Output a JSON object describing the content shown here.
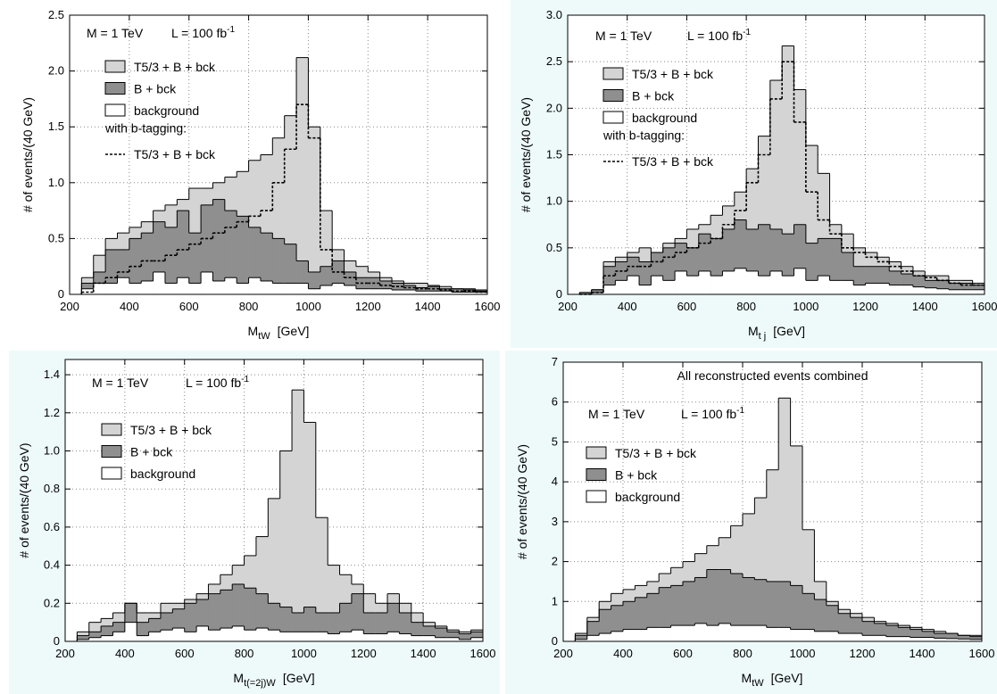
{
  "chart_data": [
    {
      "type": "histogram",
      "xlabel": "M",
      "xlabel_sub": "tW",
      "xlabel_unit": "[GeV]",
      "ylabel": "# of events/(40 GeV)",
      "mass_label": "M = 1 TeV",
      "lumi_label": "L = 100 fb",
      "lumi_exp": "-1",
      "legend_note": "with b-tagging:",
      "xlim": [
        200,
        1600
      ],
      "xticks": [
        200,
        400,
        600,
        800,
        1000,
        1200,
        1400,
        1600
      ],
      "ylim": [
        0,
        2.5
      ],
      "yticks": [
        0,
        0.5,
        {
          "value": 1,
          "label": "1.0"
        },
        1.5,
        {
          "value": 2,
          "label": "2.0"
        },
        2.5
      ],
      "grid": true,
      "bins": [
        240,
        280,
        320,
        360,
        400,
        440,
        480,
        520,
        560,
        600,
        640,
        680,
        720,
        760,
        800,
        840,
        880,
        920,
        960,
        1000,
        1040,
        1080,
        1120,
        1160,
        1200,
        1240,
        1280,
        1320,
        1360,
        1400,
        1440,
        1480,
        1520,
        1560,
        1600
      ],
      "series": [
        {
          "name": "T5/3 + B + bck",
          "color": "#d4d4d4",
          "values": [
            0.15,
            0.35,
            0.5,
            0.55,
            0.6,
            0.65,
            0.75,
            0.8,
            0.85,
            0.95,
            0.95,
            1.0,
            1.05,
            1.1,
            1.2,
            1.25,
            1.4,
            1.6,
            2.12,
            1.5,
            0.75,
            0.4,
            0.3,
            0.25,
            0.2,
            0.15,
            0.12,
            0.1,
            0.1,
            0.08,
            0.07,
            0.05,
            0.05,
            0.04
          ]
        },
        {
          "name": "B + bck",
          "color": "#8f8f8f",
          "values": [
            0.1,
            0.2,
            0.4,
            0.4,
            0.5,
            0.55,
            0.65,
            0.6,
            0.75,
            0.55,
            0.8,
            0.85,
            0.75,
            0.7,
            0.6,
            0.55,
            0.5,
            0.45,
            0.3,
            0.2,
            0.25,
            0.3,
            0.2,
            0.15,
            0.15,
            0.12,
            0.1,
            0.08,
            0.06,
            0.07,
            0.05,
            0.05,
            0.04,
            0.03
          ]
        },
        {
          "name": "background",
          "color": "#ffffff",
          "values": [
            0.05,
            0.1,
            0.1,
            0.15,
            0.1,
            0.12,
            0.2,
            0.1,
            0.15,
            0.1,
            0.2,
            0.12,
            0.15,
            0.1,
            0.15,
            0.12,
            0.1,
            0.1,
            0.1,
            0.05,
            0.08,
            0.1,
            0.08,
            0.05,
            0.05,
            0.05,
            0.04,
            0.04,
            0.03,
            0.03,
            0.03,
            0.02,
            0.02,
            0.02
          ]
        },
        {
          "name": "T5/3 + B + bck",
          "color": "#000000",
          "style": "dotted",
          "values": [
            0.02,
            0.1,
            0.15,
            0.2,
            0.25,
            0.3,
            0.3,
            0.35,
            0.4,
            0.45,
            0.5,
            0.55,
            0.6,
            0.65,
            0.7,
            0.75,
            1.0,
            1.3,
            1.7,
            1.4,
            0.4,
            0.2,
            0.15,
            0.1,
            0.1,
            0.08,
            0.07,
            0.06,
            0.05,
            0.05,
            0.04,
            0.03,
            0.03,
            0.02
          ]
        }
      ]
    },
    {
      "type": "histogram",
      "xlabel": "M",
      "xlabel_sub": "t j",
      "xlabel_unit": "[GeV]",
      "ylabel": "# of events/(40 GeV)",
      "mass_label": "M = 1 TeV",
      "lumi_label": "L = 100 fb",
      "lumi_exp": "-1",
      "legend_note": "with b-tagging:",
      "xlim": [
        200,
        1600
      ],
      "xticks": [
        200,
        400,
        600,
        800,
        1000,
        1200,
        1400,
        1600
      ],
      "ylim": [
        0,
        3
      ],
      "yticks": [
        0,
        0.5,
        {
          "value": 1,
          "label": "1.0"
        },
        1.5,
        {
          "value": 2,
          "label": "2.0"
        },
        2.5,
        {
          "value": 3,
          "label": "3.0"
        }
      ],
      "grid": true,
      "bins": [
        240,
        280,
        320,
        360,
        400,
        440,
        480,
        520,
        560,
        600,
        640,
        680,
        720,
        760,
        800,
        840,
        880,
        920,
        960,
        1000,
        1040,
        1080,
        1120,
        1160,
        1200,
        1240,
        1280,
        1320,
        1360,
        1400,
        1440,
        1480,
        1520,
        1560,
        1600
      ],
      "series": [
        {
          "name": "T5/3 + B + bck",
          "color": "#d4d4d4",
          "values": [
            0.02,
            0.05,
            0.35,
            0.4,
            0.45,
            0.5,
            0.45,
            0.55,
            0.6,
            0.7,
            0.75,
            0.85,
            0.95,
            1.1,
            1.35,
            1.7,
            2.3,
            2.67,
            2.2,
            1.6,
            1.3,
            0.75,
            0.65,
            0.5,
            0.45,
            0.4,
            0.35,
            0.3,
            0.25,
            0.2,
            0.2,
            0.15,
            0.15,
            0.12
          ]
        },
        {
          "name": "B + bck",
          "color": "#8f8f8f",
          "values": [
            0.02,
            0.05,
            0.3,
            0.35,
            0.4,
            0.35,
            0.45,
            0.5,
            0.55,
            0.5,
            0.65,
            0.6,
            0.7,
            0.8,
            0.7,
            0.75,
            0.7,
            0.65,
            0.75,
            0.55,
            0.6,
            0.6,
            0.45,
            0.3,
            0.3,
            0.3,
            0.25,
            0.22,
            0.2,
            0.15,
            0.15,
            0.12,
            0.12,
            0.1
          ]
        },
        {
          "name": "background",
          "color": "#ffffff",
          "values": [
            0,
            0.02,
            0.1,
            0.15,
            0.2,
            0.1,
            0.2,
            0.15,
            0.25,
            0.2,
            0.25,
            0.2,
            0.25,
            0.28,
            0.25,
            0.2,
            0.25,
            0.2,
            0.28,
            0.15,
            0.2,
            0.15,
            0.15,
            0.1,
            0.12,
            0.12,
            0.1,
            0.1,
            0.08,
            0.07,
            0.06,
            0.05,
            0.05,
            0.05
          ]
        },
        {
          "name": "T5/3 + B + bck",
          "color": "#000000",
          "style": "dotted",
          "values": [
            0,
            0.02,
            0.2,
            0.25,
            0.3,
            0.3,
            0.35,
            0.4,
            0.45,
            0.5,
            0.55,
            0.6,
            0.75,
            0.9,
            1.2,
            1.5,
            2.1,
            2.5,
            1.85,
            1.1,
            0.8,
            0.65,
            0.5,
            0.45,
            0.4,
            0.35,
            0.3,
            0.25,
            0.2,
            0.18,
            0.15,
            0.12,
            0.1,
            0.1
          ]
        }
      ]
    },
    {
      "type": "histogram",
      "xlabel": "M",
      "xlabel_sub": "t(=2j)W",
      "xlabel_unit": "[GeV]",
      "ylabel": "# of events/(40 GeV)",
      "mass_label": "M = 1 TeV",
      "lumi_label": "L = 100 fb",
      "lumi_exp": "-1",
      "xlim": [
        200,
        1600
      ],
      "xticks": [
        200,
        400,
        600,
        800,
        1000,
        1200,
        1400,
        1600
      ],
      "ylim": [
        0,
        1.48
      ],
      "yticks": [
        0,
        0.2,
        0.4,
        0.6,
        0.8,
        {
          "value": 1,
          "label": "1.0"
        },
        1.2,
        1.4
      ],
      "grid": true,
      "bins": [
        240,
        280,
        320,
        360,
        400,
        440,
        480,
        520,
        560,
        600,
        640,
        680,
        720,
        760,
        800,
        840,
        880,
        920,
        960,
        1000,
        1040,
        1080,
        1120,
        1160,
        1200,
        1240,
        1280,
        1320,
        1360,
        1400,
        1440,
        1480,
        1520,
        1560,
        1600
      ],
      "series": [
        {
          "name": "T5/3 + B + bck",
          "color": "#d4d4d4",
          "values": [
            0.05,
            0.1,
            0.12,
            0.15,
            0.2,
            0.15,
            0.15,
            0.2,
            0.2,
            0.22,
            0.25,
            0.3,
            0.35,
            0.4,
            0.45,
            0.55,
            0.75,
            1.0,
            1.32,
            1.15,
            0.65,
            0.4,
            0.35,
            0.3,
            0.25,
            0.2,
            0.25,
            0.2,
            0.15,
            0.1,
            0.08,
            0.06,
            0.05,
            0.06
          ]
        },
        {
          "name": "B + bck",
          "color": "#8f8f8f",
          "values": [
            0.03,
            0.05,
            0.08,
            0.1,
            0.2,
            0.1,
            0.12,
            0.15,
            0.17,
            0.2,
            0.22,
            0.25,
            0.27,
            0.3,
            0.28,
            0.25,
            0.2,
            0.18,
            0.15,
            0.18,
            0.15,
            0.15,
            0.2,
            0.25,
            0.15,
            0.15,
            0.2,
            0.15,
            0.1,
            0.08,
            0.07,
            0.05,
            0.04,
            0.05
          ]
        },
        {
          "name": "background",
          "color": "#ffffff",
          "values": [
            0.01,
            0.02,
            0.03,
            0.05,
            0.1,
            0.03,
            0.05,
            0.06,
            0.07,
            0.05,
            0.08,
            0.06,
            0.07,
            0.08,
            0.06,
            0.07,
            0.06,
            0.05,
            0.05,
            0.05,
            0.05,
            0.04,
            0.05,
            0.06,
            0.04,
            0.04,
            0.05,
            0.04,
            0.03,
            0.03,
            0.02,
            0.02,
            0.01,
            0.02
          ]
        }
      ]
    },
    {
      "type": "histogram",
      "title": "All reconstructed events combined",
      "xlabel": "M",
      "xlabel_sub": "tW",
      "xlabel_unit": "[GeV]",
      "ylabel": "# of events/(40 GeV)",
      "mass_label": "M = 1 TeV",
      "lumi_label": "L = 100 fb",
      "lumi_exp": "-1",
      "xlim": [
        200,
        1600
      ],
      "xticks": [
        200,
        400,
        600,
        800,
        1000,
        1200,
        1400,
        1600
      ],
      "ylim": [
        0,
        7
      ],
      "yticks": [
        0,
        1,
        2,
        3,
        4,
        5,
        6,
        7
      ],
      "grid": true,
      "bins": [
        240,
        280,
        320,
        360,
        400,
        440,
        480,
        520,
        560,
        600,
        640,
        680,
        720,
        760,
        800,
        840,
        880,
        920,
        960,
        1000,
        1040,
        1080,
        1120,
        1160,
        1200,
        1240,
        1280,
        1320,
        1360,
        1400,
        1440,
        1480,
        1520,
        1560,
        1600
      ],
      "series": [
        {
          "name": "T5/3 + B + bck",
          "color": "#d4d4d4",
          "values": [
            0.2,
            0.6,
            1.0,
            1.2,
            1.3,
            1.4,
            1.5,
            1.7,
            1.85,
            2.0,
            2.2,
            2.4,
            2.6,
            2.9,
            3.2,
            3.6,
            4.3,
            6.1,
            4.9,
            2.8,
            1.5,
            1.0,
            0.8,
            0.7,
            0.6,
            0.5,
            0.45,
            0.4,
            0.35,
            0.3,
            0.25,
            0.2,
            0.15,
            0.15
          ]
        },
        {
          "name": "B + bck",
          "color": "#8f8f8f",
          "values": [
            0.15,
            0.5,
            0.8,
            0.9,
            1.0,
            1.1,
            1.2,
            1.35,
            1.4,
            1.5,
            1.6,
            1.8,
            1.8,
            1.7,
            1.6,
            1.55,
            1.5,
            1.5,
            1.4,
            1.2,
            1.05,
            0.9,
            0.7,
            0.6,
            0.5,
            0.45,
            0.4,
            0.35,
            0.3,
            0.25,
            0.2,
            0.2,
            0.15,
            0.12
          ]
        },
        {
          "name": "background",
          "color": "#ffffff",
          "values": [
            0.05,
            0.15,
            0.2,
            0.25,
            0.3,
            0.3,
            0.35,
            0.35,
            0.4,
            0.4,
            0.45,
            0.4,
            0.45,
            0.4,
            0.4,
            0.4,
            0.35,
            0.35,
            0.3,
            0.3,
            0.25,
            0.25,
            0.2,
            0.2,
            0.15,
            0.15,
            0.12,
            0.12,
            0.1,
            0.1,
            0.08,
            0.07,
            0.06,
            0.05
          ]
        }
      ]
    }
  ]
}
